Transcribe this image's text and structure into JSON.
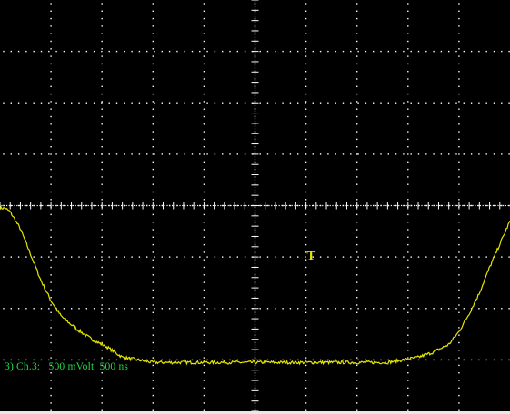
{
  "screen": {
    "background": "#000000",
    "grid_color": "#ffffff",
    "trace_color": "#e6e600",
    "status_color": "#22d84a",
    "grid": {
      "divisions_x": 10,
      "divisions_y": 8,
      "minor_per_division": 5
    }
  },
  "channel": {
    "label": "3) Ch.3:",
    "volts_per_div": "500 mVolt",
    "time_per_div": "500 ns"
  },
  "trigger": {
    "marker": "T",
    "time_div": 6.1,
    "level_div": 5.05
  },
  "chart_data": {
    "type": "line",
    "title": "",
    "xlabel": "",
    "ylabel": "",
    "xlim": [
      0,
      10
    ],
    "ylim": [
      -4,
      4
    ],
    "grid": true,
    "series": [
      {
        "x": [
          0,
          0.1,
          0.2,
          0.4,
          0.6,
          0.8,
          1.0,
          1.2,
          1.5,
          1.8,
          2.1,
          2.4,
          2.7,
          3.0,
          4.0,
          5.0,
          6.0,
          7.0,
          7.6,
          7.9,
          8.2,
          8.5,
          8.8,
          9.0,
          9.2,
          9.4,
          9.6,
          9.8,
          10.0
        ],
        "values": [
          -0.05,
          -0.05,
          -0.12,
          -0.45,
          -0.95,
          -1.45,
          -1.85,
          -2.15,
          -2.4,
          -2.6,
          -2.75,
          -2.95,
          -3.0,
          -3.05,
          -3.05,
          -3.05,
          -3.05,
          -3.05,
          -3.05,
          -3.0,
          -2.95,
          -2.85,
          -2.7,
          -2.45,
          -2.1,
          -1.7,
          -1.2,
          -0.75,
          -0.3
        ]
      }
    ]
  }
}
